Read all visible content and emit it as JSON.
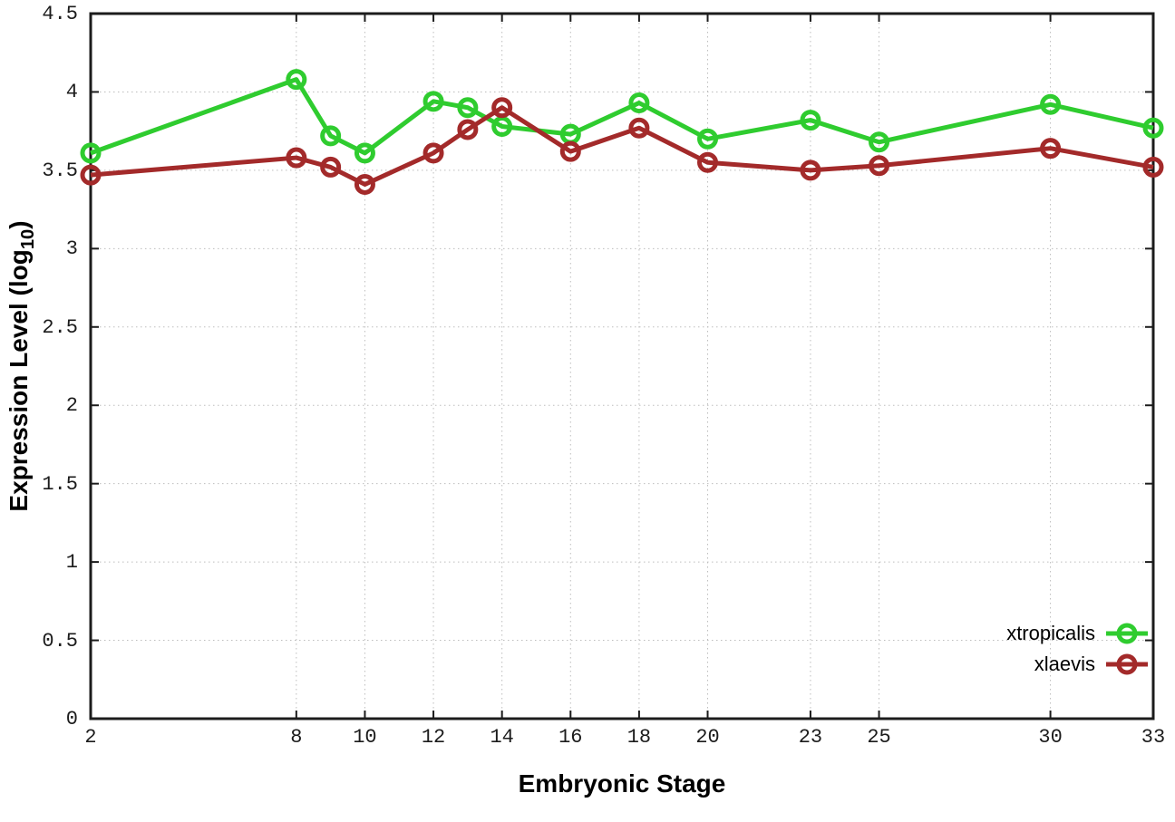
{
  "figure": {
    "background": "#ffffff",
    "border_color": "#1c1c1c",
    "grid_color": "#bdbdbd",
    "tick_color": "#1c1c1c",
    "text_color": "#000000"
  },
  "chart_data": {
    "type": "line",
    "title": "",
    "xlabel": "Embryonic Stage",
    "ylabel": "Expression Level (log10)",
    "ylabel_parts": {
      "prefix": "Expression Level (log",
      "subscript": "10",
      "suffix": ")"
    },
    "x": [
      2,
      8,
      9,
      10,
      12,
      13,
      14,
      16,
      18,
      20,
      23,
      25,
      30,
      33
    ],
    "series": [
      {
        "name": "xtropicalis",
        "color": "#2fcc2f",
        "marker": "open-circle",
        "values": [
          3.61,
          4.08,
          3.72,
          3.61,
          3.94,
          3.9,
          3.78,
          3.73,
          3.93,
          3.7,
          3.82,
          3.68,
          3.92,
          3.77
        ]
      },
      {
        "name": "xlaevis",
        "color": "#a32a2a",
        "marker": "open-circle",
        "values": [
          3.47,
          3.58,
          3.52,
          3.41,
          3.61,
          3.76,
          3.9,
          3.62,
          3.77,
          3.55,
          3.5,
          3.53,
          3.64,
          3.52
        ]
      }
    ],
    "xlim": [
      2,
      33
    ],
    "ylim": [
      0,
      4.5
    ],
    "x_tick_values": [
      2,
      8,
      10,
      12,
      14,
      16,
      18,
      20,
      23,
      25,
      30,
      33
    ],
    "x_tick_labels": [
      "2",
      "8",
      "10",
      "12",
      "14",
      "16",
      "18",
      "20",
      "23",
      "25",
      "30",
      "33"
    ],
    "y_tick_values": [
      0,
      0.5,
      1,
      1.5,
      2,
      2.5,
      3,
      3.5,
      4,
      4.5
    ],
    "y_tick_labels": [
      "0",
      "0.5",
      "1",
      "1.5",
      "2",
      "2.5",
      "3",
      "3.5",
      "4",
      "4.5"
    ],
    "grid": true,
    "legend_position": "bottom-right"
  }
}
